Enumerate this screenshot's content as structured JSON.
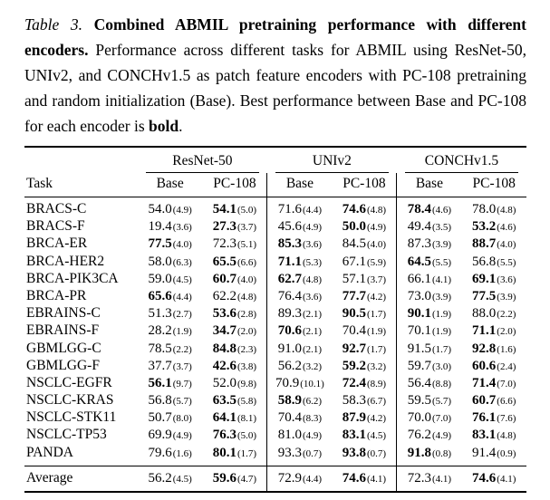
{
  "caption": {
    "label": "Table 3.",
    "title": " Combined ABMIL pretraining performance with different encoders.",
    "body": " Performance across different tasks for ABMIL using ResNet-50, UNIv2, and CONCHv1.5 as patch feature encoders with PC-108 pretraining and random initialization (Base). Best performance between Base and PC-108 for each encoder is ",
    "bold_word": "bold",
    "period": "."
  },
  "table": {
    "task_header": "Task",
    "groups": [
      {
        "name": "ResNet-50"
      },
      {
        "name": "UNIv2"
      },
      {
        "name": "CONCHv1.5"
      }
    ],
    "subheaders": [
      "Base",
      "PC-108"
    ],
    "rows": [
      {
        "task": "BRACS-C",
        "cells": [
          {
            "v": "54.0",
            "sd": "(4.9)",
            "bold": false
          },
          {
            "v": "54.1",
            "sd": "(5.0)",
            "bold": true
          },
          {
            "v": "71.6",
            "sd": "(4.4)",
            "bold": false
          },
          {
            "v": "74.6",
            "sd": "(4.8)",
            "bold": true
          },
          {
            "v": "78.4",
            "sd": "(4.6)",
            "bold": true
          },
          {
            "v": "78.0",
            "sd": "(4.8)",
            "bold": false
          }
        ]
      },
      {
        "task": "BRACS-F",
        "cells": [
          {
            "v": "19.4",
            "sd": "(3.6)",
            "bold": false
          },
          {
            "v": "27.3",
            "sd": "(3.7)",
            "bold": true
          },
          {
            "v": "45.6",
            "sd": "(4.9)",
            "bold": false
          },
          {
            "v": "50.0",
            "sd": "(4.9)",
            "bold": true
          },
          {
            "v": "49.4",
            "sd": "(3.5)",
            "bold": false
          },
          {
            "v": "53.2",
            "sd": "(4.6)",
            "bold": true
          }
        ]
      },
      {
        "task": "BRCA-ER",
        "cells": [
          {
            "v": "77.5",
            "sd": "(4.0)",
            "bold": true
          },
          {
            "v": "72.3",
            "sd": "(5.1)",
            "bold": false
          },
          {
            "v": "85.3",
            "sd": "(3.6)",
            "bold": true
          },
          {
            "v": "84.5",
            "sd": "(4.0)",
            "bold": false
          },
          {
            "v": "87.3",
            "sd": "(3.9)",
            "bold": false
          },
          {
            "v": "88.7",
            "sd": "(4.0)",
            "bold": true
          }
        ]
      },
      {
        "task": "BRCA-HER2",
        "cells": [
          {
            "v": "58.0",
            "sd": "(6.3)",
            "bold": false
          },
          {
            "v": "65.5",
            "sd": "(6.6)",
            "bold": true
          },
          {
            "v": "71.1",
            "sd": "(5.3)",
            "bold": true
          },
          {
            "v": "67.1",
            "sd": "(5.9)",
            "bold": false
          },
          {
            "v": "64.5",
            "sd": "(5.5)",
            "bold": true
          },
          {
            "v": "56.8",
            "sd": "(5.5)",
            "bold": false
          }
        ]
      },
      {
        "task": "BRCA-PIK3CA",
        "cells": [
          {
            "v": "59.0",
            "sd": "(4.5)",
            "bold": false
          },
          {
            "v": "60.7",
            "sd": "(4.0)",
            "bold": true
          },
          {
            "v": "62.7",
            "sd": "(4.8)",
            "bold": true
          },
          {
            "v": "57.1",
            "sd": "(3.7)",
            "bold": false
          },
          {
            "v": "66.1",
            "sd": "(4.1)",
            "bold": false
          },
          {
            "v": "69.1",
            "sd": "(3.6)",
            "bold": true
          }
        ]
      },
      {
        "task": "BRCA-PR",
        "cells": [
          {
            "v": "65.6",
            "sd": "(4.4)",
            "bold": true
          },
          {
            "v": "62.2",
            "sd": "(4.8)",
            "bold": false
          },
          {
            "v": "76.4",
            "sd": "(3.6)",
            "bold": false
          },
          {
            "v": "77.7",
            "sd": "(4.2)",
            "bold": true
          },
          {
            "v": "73.0",
            "sd": "(3.9)",
            "bold": false
          },
          {
            "v": "77.5",
            "sd": "(3.9)",
            "bold": true
          }
        ]
      },
      {
        "task": "EBRAINS-C",
        "cells": [
          {
            "v": "51.3",
            "sd": "(2.7)",
            "bold": false
          },
          {
            "v": "53.6",
            "sd": "(2.8)",
            "bold": true
          },
          {
            "v": "89.3",
            "sd": "(2.1)",
            "bold": false
          },
          {
            "v": "90.5",
            "sd": "(1.7)",
            "bold": true
          },
          {
            "v": "90.1",
            "sd": "(1.9)",
            "bold": true
          },
          {
            "v": "88.0",
            "sd": "(2.2)",
            "bold": false
          }
        ]
      },
      {
        "task": "EBRAINS-F",
        "cells": [
          {
            "v": "28.2",
            "sd": "(1.9)",
            "bold": false
          },
          {
            "v": "34.7",
            "sd": "(2.0)",
            "bold": true
          },
          {
            "v": "70.6",
            "sd": "(2.1)",
            "bold": true
          },
          {
            "v": "70.4",
            "sd": "(1.9)",
            "bold": false
          },
          {
            "v": "70.1",
            "sd": "(1.9)",
            "bold": false
          },
          {
            "v": "71.1",
            "sd": "(2.0)",
            "bold": true
          }
        ]
      },
      {
        "task": "GBMLGG-C",
        "cells": [
          {
            "v": "78.5",
            "sd": "(2.2)",
            "bold": false
          },
          {
            "v": "84.8",
            "sd": "(2.3)",
            "bold": true
          },
          {
            "v": "91.0",
            "sd": "(2.1)",
            "bold": false
          },
          {
            "v": "92.7",
            "sd": "(1.7)",
            "bold": true
          },
          {
            "v": "91.5",
            "sd": "(1.7)",
            "bold": false
          },
          {
            "v": "92.8",
            "sd": "(1.6)",
            "bold": true
          }
        ]
      },
      {
        "task": "GBMLGG-F",
        "cells": [
          {
            "v": "37.7",
            "sd": "(3.7)",
            "bold": false
          },
          {
            "v": "42.6",
            "sd": "(3.8)",
            "bold": true
          },
          {
            "v": "56.2",
            "sd": "(3.2)",
            "bold": false
          },
          {
            "v": "59.2",
            "sd": "(3.2)",
            "bold": true
          },
          {
            "v": "59.7",
            "sd": "(3.0)",
            "bold": false
          },
          {
            "v": "60.6",
            "sd": "(2.4)",
            "bold": true
          }
        ]
      },
      {
        "task": "NSCLC-EGFR",
        "cells": [
          {
            "v": "56.1",
            "sd": "(9.7)",
            "bold": true
          },
          {
            "v": "52.0",
            "sd": "(9.8)",
            "bold": false
          },
          {
            "v": "70.9",
            "sd": "(10.1)",
            "bold": false
          },
          {
            "v": "72.4",
            "sd": "(8.9)",
            "bold": true
          },
          {
            "v": "56.4",
            "sd": "(8.8)",
            "bold": false
          },
          {
            "v": "71.4",
            "sd": "(7.0)",
            "bold": true
          }
        ]
      },
      {
        "task": "NSCLC-KRAS",
        "cells": [
          {
            "v": "56.8",
            "sd": "(5.7)",
            "bold": false
          },
          {
            "v": "63.5",
            "sd": "(5.8)",
            "bold": true
          },
          {
            "v": "58.9",
            "sd": "(6.2)",
            "bold": true
          },
          {
            "v": "58.3",
            "sd": "(6.7)",
            "bold": false
          },
          {
            "v": "59.5",
            "sd": "(5.7)",
            "bold": false
          },
          {
            "v": "60.7",
            "sd": "(6.6)",
            "bold": true
          }
        ]
      },
      {
        "task": "NSCLC-STK11",
        "cells": [
          {
            "v": "50.7",
            "sd": "(8.0)",
            "bold": false
          },
          {
            "v": "64.1",
            "sd": "(8.1)",
            "bold": true
          },
          {
            "v": "70.4",
            "sd": "(8.3)",
            "bold": false
          },
          {
            "v": "87.9",
            "sd": "(4.2)",
            "bold": true
          },
          {
            "v": "70.0",
            "sd": "(7.0)",
            "bold": false
          },
          {
            "v": "76.1",
            "sd": "(7.6)",
            "bold": true
          }
        ]
      },
      {
        "task": "NSCLC-TP53",
        "cells": [
          {
            "v": "69.9",
            "sd": "(4.9)",
            "bold": false
          },
          {
            "v": "76.3",
            "sd": "(5.0)",
            "bold": true
          },
          {
            "v": "81.0",
            "sd": "(4.9)",
            "bold": false
          },
          {
            "v": "83.1",
            "sd": "(4.5)",
            "bold": true
          },
          {
            "v": "76.2",
            "sd": "(4.9)",
            "bold": false
          },
          {
            "v": "83.1",
            "sd": "(4.8)",
            "bold": true
          }
        ]
      },
      {
        "task": "PANDA",
        "cells": [
          {
            "v": "79.6",
            "sd": "(1.6)",
            "bold": false
          },
          {
            "v": "80.1",
            "sd": "(1.7)",
            "bold": true
          },
          {
            "v": "93.3",
            "sd": "(0.7)",
            "bold": false
          },
          {
            "v": "93.8",
            "sd": "(0.7)",
            "bold": true
          },
          {
            "v": "91.8",
            "sd": "(0.8)",
            "bold": true
          },
          {
            "v": "91.4",
            "sd": "(0.9)",
            "bold": false
          }
        ]
      }
    ],
    "average": {
      "task": "Average",
      "cells": [
        {
          "v": "56.2",
          "sd": "(4.5)",
          "bold": false
        },
        {
          "v": "59.6",
          "sd": "(4.7)",
          "bold": true
        },
        {
          "v": "72.9",
          "sd": "(4.4)",
          "bold": false
        },
        {
          "v": "74.6",
          "sd": "(4.1)",
          "bold": true
        },
        {
          "v": "72.3",
          "sd": "(4.1)",
          "bold": false
        },
        {
          "v": "74.6",
          "sd": "(4.1)",
          "bold": true
        }
      ]
    }
  }
}
